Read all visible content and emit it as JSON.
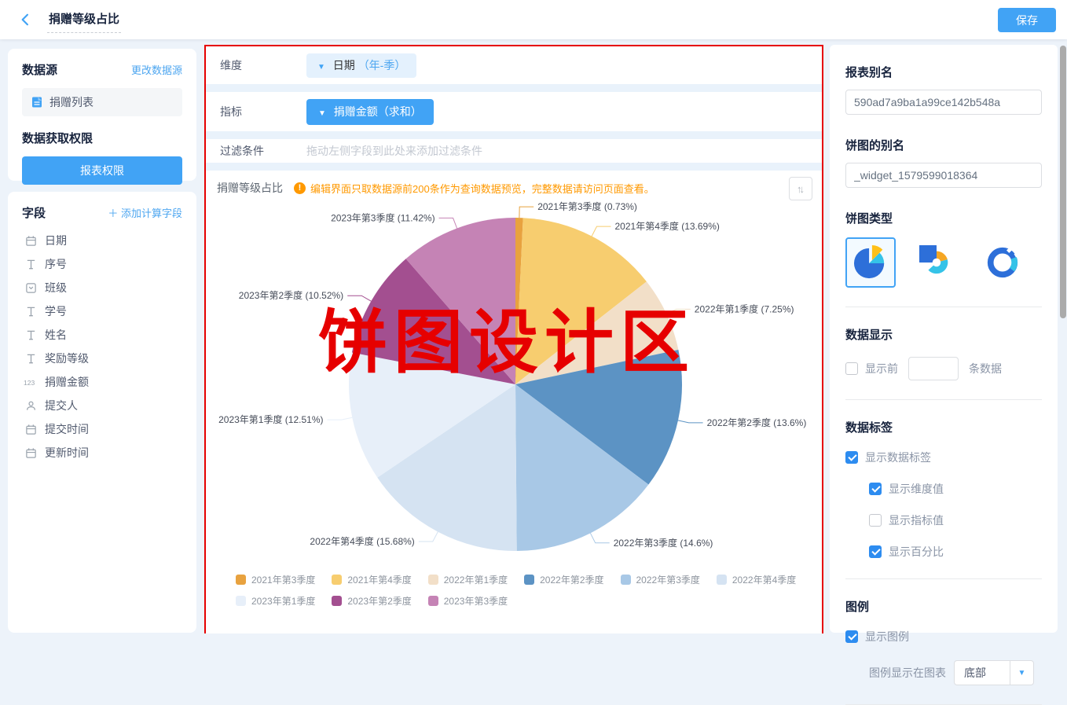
{
  "colors": {
    "accent_blue": "#41A3F5",
    "design_area_border": "#E60000",
    "warning_orange": "#FF9900"
  },
  "topbar": {
    "title": "捐赠等级占比",
    "save_label": "保存"
  },
  "left": {
    "datasource": {
      "title": "数据源",
      "change_link": "更改数据源",
      "item": "捐赠列表",
      "perm_title": "数据获取权限",
      "perm_button": "报表权限"
    },
    "fields": {
      "title": "字段",
      "add_link": "添加计算字段",
      "items": [
        {
          "icon": "calendar",
          "label": "日期"
        },
        {
          "icon": "text",
          "label": "序号"
        },
        {
          "icon": "select",
          "label": "班级"
        },
        {
          "icon": "text",
          "label": "学号"
        },
        {
          "icon": "text",
          "label": "姓名"
        },
        {
          "icon": "text",
          "label": "奖励等级"
        },
        {
          "icon": "number",
          "label": "捐赠金额"
        },
        {
          "icon": "person",
          "label": "提交人"
        },
        {
          "icon": "calendar",
          "label": "提交时间"
        },
        {
          "icon": "calendar",
          "label": "更新时间"
        }
      ]
    }
  },
  "center": {
    "dimension": {
      "label": "维度",
      "tag_caret": "▼",
      "tag_name": "日期",
      "tag_suffix": "（年-季）"
    },
    "metric": {
      "label": "指标",
      "tag_caret": "▼",
      "tag_name": "捐赠金额（求和）"
    },
    "filter": {
      "label": "过滤条件",
      "placeholder": "拖动左侧字段到此处来添加过滤条件"
    },
    "chart_header": {
      "title": "捐赠等级占比",
      "warning_icon": "!",
      "warning": "编辑界面只取数据源前200条作为查询数据预览，完整数据请访问页面查看。",
      "sort_icon": "↑↓"
    },
    "watermark": "饼图设计区"
  },
  "chart_data": {
    "type": "pie",
    "title": "捐赠等级占比",
    "start_angle_deg": -90,
    "clockwise": true,
    "label_format": "{name} ({value}%)",
    "legend_position": "bottom",
    "slices": [
      {
        "name": "2021年第3季度",
        "value": 0.73,
        "color": "#E8A23F"
      },
      {
        "name": "2021年第4季度",
        "value": 13.69,
        "color": "#F7CD6F"
      },
      {
        "name": "2022年第1季度",
        "value": 7.25,
        "color": "#F2DFC8"
      },
      {
        "name": "2022年第2季度",
        "value": 13.6,
        "color": "#5C93C4"
      },
      {
        "name": "2022年第3季度",
        "value": 14.6,
        "color": "#A8C8E6"
      },
      {
        "name": "2022年第4季度",
        "value": 15.68,
        "color": "#D5E3F2"
      },
      {
        "name": "2023年第1季度",
        "value": 12.51,
        "color": "#E7EFF9"
      },
      {
        "name": "2023年第2季度",
        "value": 10.52,
        "color": "#A34F90"
      },
      {
        "name": "2023年第3季度",
        "value": 11.42,
        "color": "#C583B5"
      }
    ]
  },
  "right": {
    "report_alias": {
      "label": "报表别名",
      "value": "590ad7a9ba1a99ce142b548a"
    },
    "pie_alias": {
      "label": "饼图的别名",
      "value": "_widget_1579599018364"
    },
    "pie_type": {
      "label": "饼图类型",
      "options": [
        "pie-basic",
        "pie-rose",
        "pie-donut"
      ],
      "selected_index": 0
    },
    "data_display": {
      "title": "数据显示",
      "checked": false,
      "prefix": "显示前",
      "input_value": "",
      "suffix": "条数据"
    },
    "data_label": {
      "title": "数据标签",
      "items": [
        {
          "label": "显示数据标签",
          "checked": true,
          "indent": 0
        },
        {
          "label": "显示维度值",
          "checked": true,
          "indent": 1
        },
        {
          "label": "显示指标值",
          "checked": false,
          "indent": 1
        },
        {
          "label": "显示百分比",
          "checked": true,
          "indent": 1
        }
      ]
    },
    "legend": {
      "title": "图例",
      "show_label": "显示图例",
      "checked": true,
      "position_label": "图例显示在图表",
      "position_value": "底部"
    }
  }
}
